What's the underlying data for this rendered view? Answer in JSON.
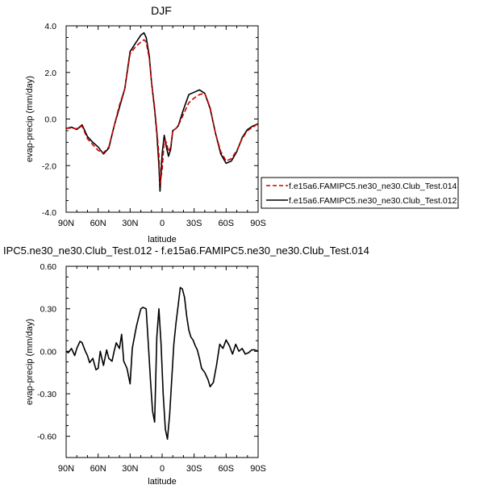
{
  "chart_data": [
    {
      "type": "line",
      "title": "DJF",
      "xlabel": "latitude",
      "ylabel": "evap-precip (mm/day)",
      "xlim": [
        -90,
        90
      ],
      "ylim": [
        -4.0,
        4.0
      ],
      "xticks": [
        -90,
        -60,
        -30,
        0,
        30,
        60,
        90
      ],
      "xtick_labels": [
        "90N",
        "60N",
        "30N",
        "0",
        "30S",
        "60S",
        "90S"
      ],
      "yticks": [
        -4.0,
        -2.0,
        0.0,
        2.0,
        4.0
      ],
      "ytick_labels": [
        "-4.0",
        "-2.0",
        "0.0",
        "2.0",
        "4.0"
      ],
      "grid": false,
      "legend_position": "right",
      "series": [
        {
          "name": "f.e15a6.FAMIPC5.ne30_ne30.Club_Test.014",
          "color": "#cc0000",
          "dash": "dashed",
          "x": [
            -90,
            -85,
            -80,
            -75,
            -70,
            -65,
            -60,
            -55,
            -50,
            -45,
            -40,
            -35,
            -30,
            -25,
            -20,
            -17,
            -15,
            -12,
            -10,
            -7,
            -5,
            -3,
            -2,
            0,
            2,
            4,
            6,
            8,
            10,
            13,
            15,
            20,
            25,
            30,
            35,
            40,
            45,
            50,
            55,
            60,
            65,
            70,
            75,
            80,
            85,
            90
          ],
          "y": [
            -0.4,
            -0.38,
            -0.42,
            -0.3,
            -0.85,
            -1.1,
            -1.35,
            -1.45,
            -1.2,
            -0.3,
            0.6,
            1.3,
            2.8,
            3.1,
            3.3,
            3.4,
            3.3,
            2.6,
            1.6,
            0.5,
            -0.5,
            -1.5,
            -2.75,
            -2.2,
            -0.9,
            -1.0,
            -1.4,
            -1.2,
            -0.5,
            -0.4,
            -0.3,
            0.2,
            0.7,
            0.9,
            1.05,
            1.1,
            0.5,
            -0.6,
            -1.4,
            -1.8,
            -1.7,
            -1.35,
            -0.85,
            -0.5,
            -0.35,
            -0.2
          ]
        },
        {
          "name": "f.e15a6.FAMIPC5.ne30_ne30.Club_Test.012",
          "color": "#000000",
          "dash": "solid",
          "x": [
            -90,
            -85,
            -80,
            -75,
            -70,
            -65,
            -60,
            -55,
            -50,
            -45,
            -40,
            -35,
            -30,
            -25,
            -20,
            -17,
            -15,
            -12,
            -10,
            -7,
            -5,
            -3,
            -2,
            0,
            2,
            4,
            6,
            8,
            10,
            13,
            15,
            20,
            25,
            30,
            35,
            40,
            45,
            50,
            55,
            60,
            65,
            70,
            75,
            80,
            85,
            90
          ],
          "y": [
            -0.4,
            -0.35,
            -0.45,
            -0.25,
            -0.75,
            -1.0,
            -1.2,
            -1.5,
            -1.25,
            -0.3,
            0.5,
            1.3,
            2.9,
            3.25,
            3.6,
            3.7,
            3.5,
            2.7,
            1.6,
            0.4,
            -0.6,
            -2.0,
            -3.1,
            -1.5,
            -0.7,
            -1.2,
            -1.6,
            -1.3,
            -0.5,
            -0.4,
            -0.3,
            0.4,
            1.05,
            1.15,
            1.25,
            1.1,
            0.45,
            -0.6,
            -1.5,
            -1.9,
            -1.8,
            -1.4,
            -0.8,
            -0.45,
            -0.3,
            -0.2
          ]
        }
      ]
    },
    {
      "type": "line",
      "title": "IPC5.ne30_ne30.Club_Test.012 - f.e15a6.FAMIPC5.ne30_ne30.Club_Test.014",
      "xlabel": "latitude",
      "ylabel": "evap-precip (mm/day)",
      "xlim": [
        -90,
        90
      ],
      "ylim": [
        -0.75,
        0.6
      ],
      "xticks": [
        -90,
        -60,
        -30,
        0,
        30,
        60,
        90
      ],
      "xtick_labels": [
        "90N",
        "60N",
        "30N",
        "0",
        "30S",
        "60S",
        "90S"
      ],
      "yticks": [
        -0.6,
        -0.3,
        0.0,
        0.3,
        0.6
      ],
      "ytick_labels": [
        "-0.60",
        "-0.30",
        "0.00",
        "0.30",
        "0.60"
      ],
      "grid": false,
      "series": [
        {
          "color": "#000000",
          "dash": "solid",
          "x": [
            -90,
            -88,
            -85,
            -82,
            -80,
            -77,
            -75,
            -72,
            -70,
            -68,
            -65,
            -62,
            -60,
            -58,
            -55,
            -52,
            -50,
            -47,
            -45,
            -43,
            -40,
            -38,
            -36,
            -33,
            -30,
            -28,
            -26,
            -24,
            -22,
            -20,
            -18,
            -15,
            -13,
            -11,
            -9,
            -7,
            -5,
            -3,
            -1,
            1,
            3,
            5,
            7,
            9,
            11,
            13,
            15,
            17,
            19,
            21,
            23,
            25,
            27,
            29,
            31,
            33,
            35,
            37,
            40,
            43,
            45,
            48,
            51,
            54,
            57,
            60,
            63,
            66,
            69,
            72,
            75,
            78,
            81,
            84,
            87,
            90
          ],
          "y": [
            0.0,
            -0.01,
            0.02,
            -0.03,
            0.02,
            0.07,
            0.06,
            0.0,
            -0.03,
            -0.08,
            -0.05,
            -0.13,
            -0.12,
            0.0,
            -0.1,
            0.01,
            -0.05,
            -0.07,
            0.0,
            0.06,
            0.02,
            0.12,
            -0.07,
            -0.12,
            -0.23,
            0.02,
            0.1,
            0.18,
            0.24,
            0.3,
            0.31,
            0.3,
            0.06,
            -0.2,
            -0.42,
            -0.5,
            0.1,
            0.3,
            0.05,
            -0.3,
            -0.55,
            -0.62,
            -0.45,
            -0.2,
            0.05,
            0.2,
            0.32,
            0.45,
            0.44,
            0.38,
            0.25,
            0.15,
            0.1,
            0.08,
            0.04,
            0.01,
            -0.05,
            -0.12,
            -0.15,
            -0.2,
            -0.25,
            -0.22,
            -0.1,
            0.05,
            0.02,
            0.08,
            0.04,
            -0.02,
            0.05,
            0.0,
            0.02,
            -0.02,
            -0.01,
            0.01,
            0.01,
            0.0
          ]
        }
      ]
    }
  ]
}
